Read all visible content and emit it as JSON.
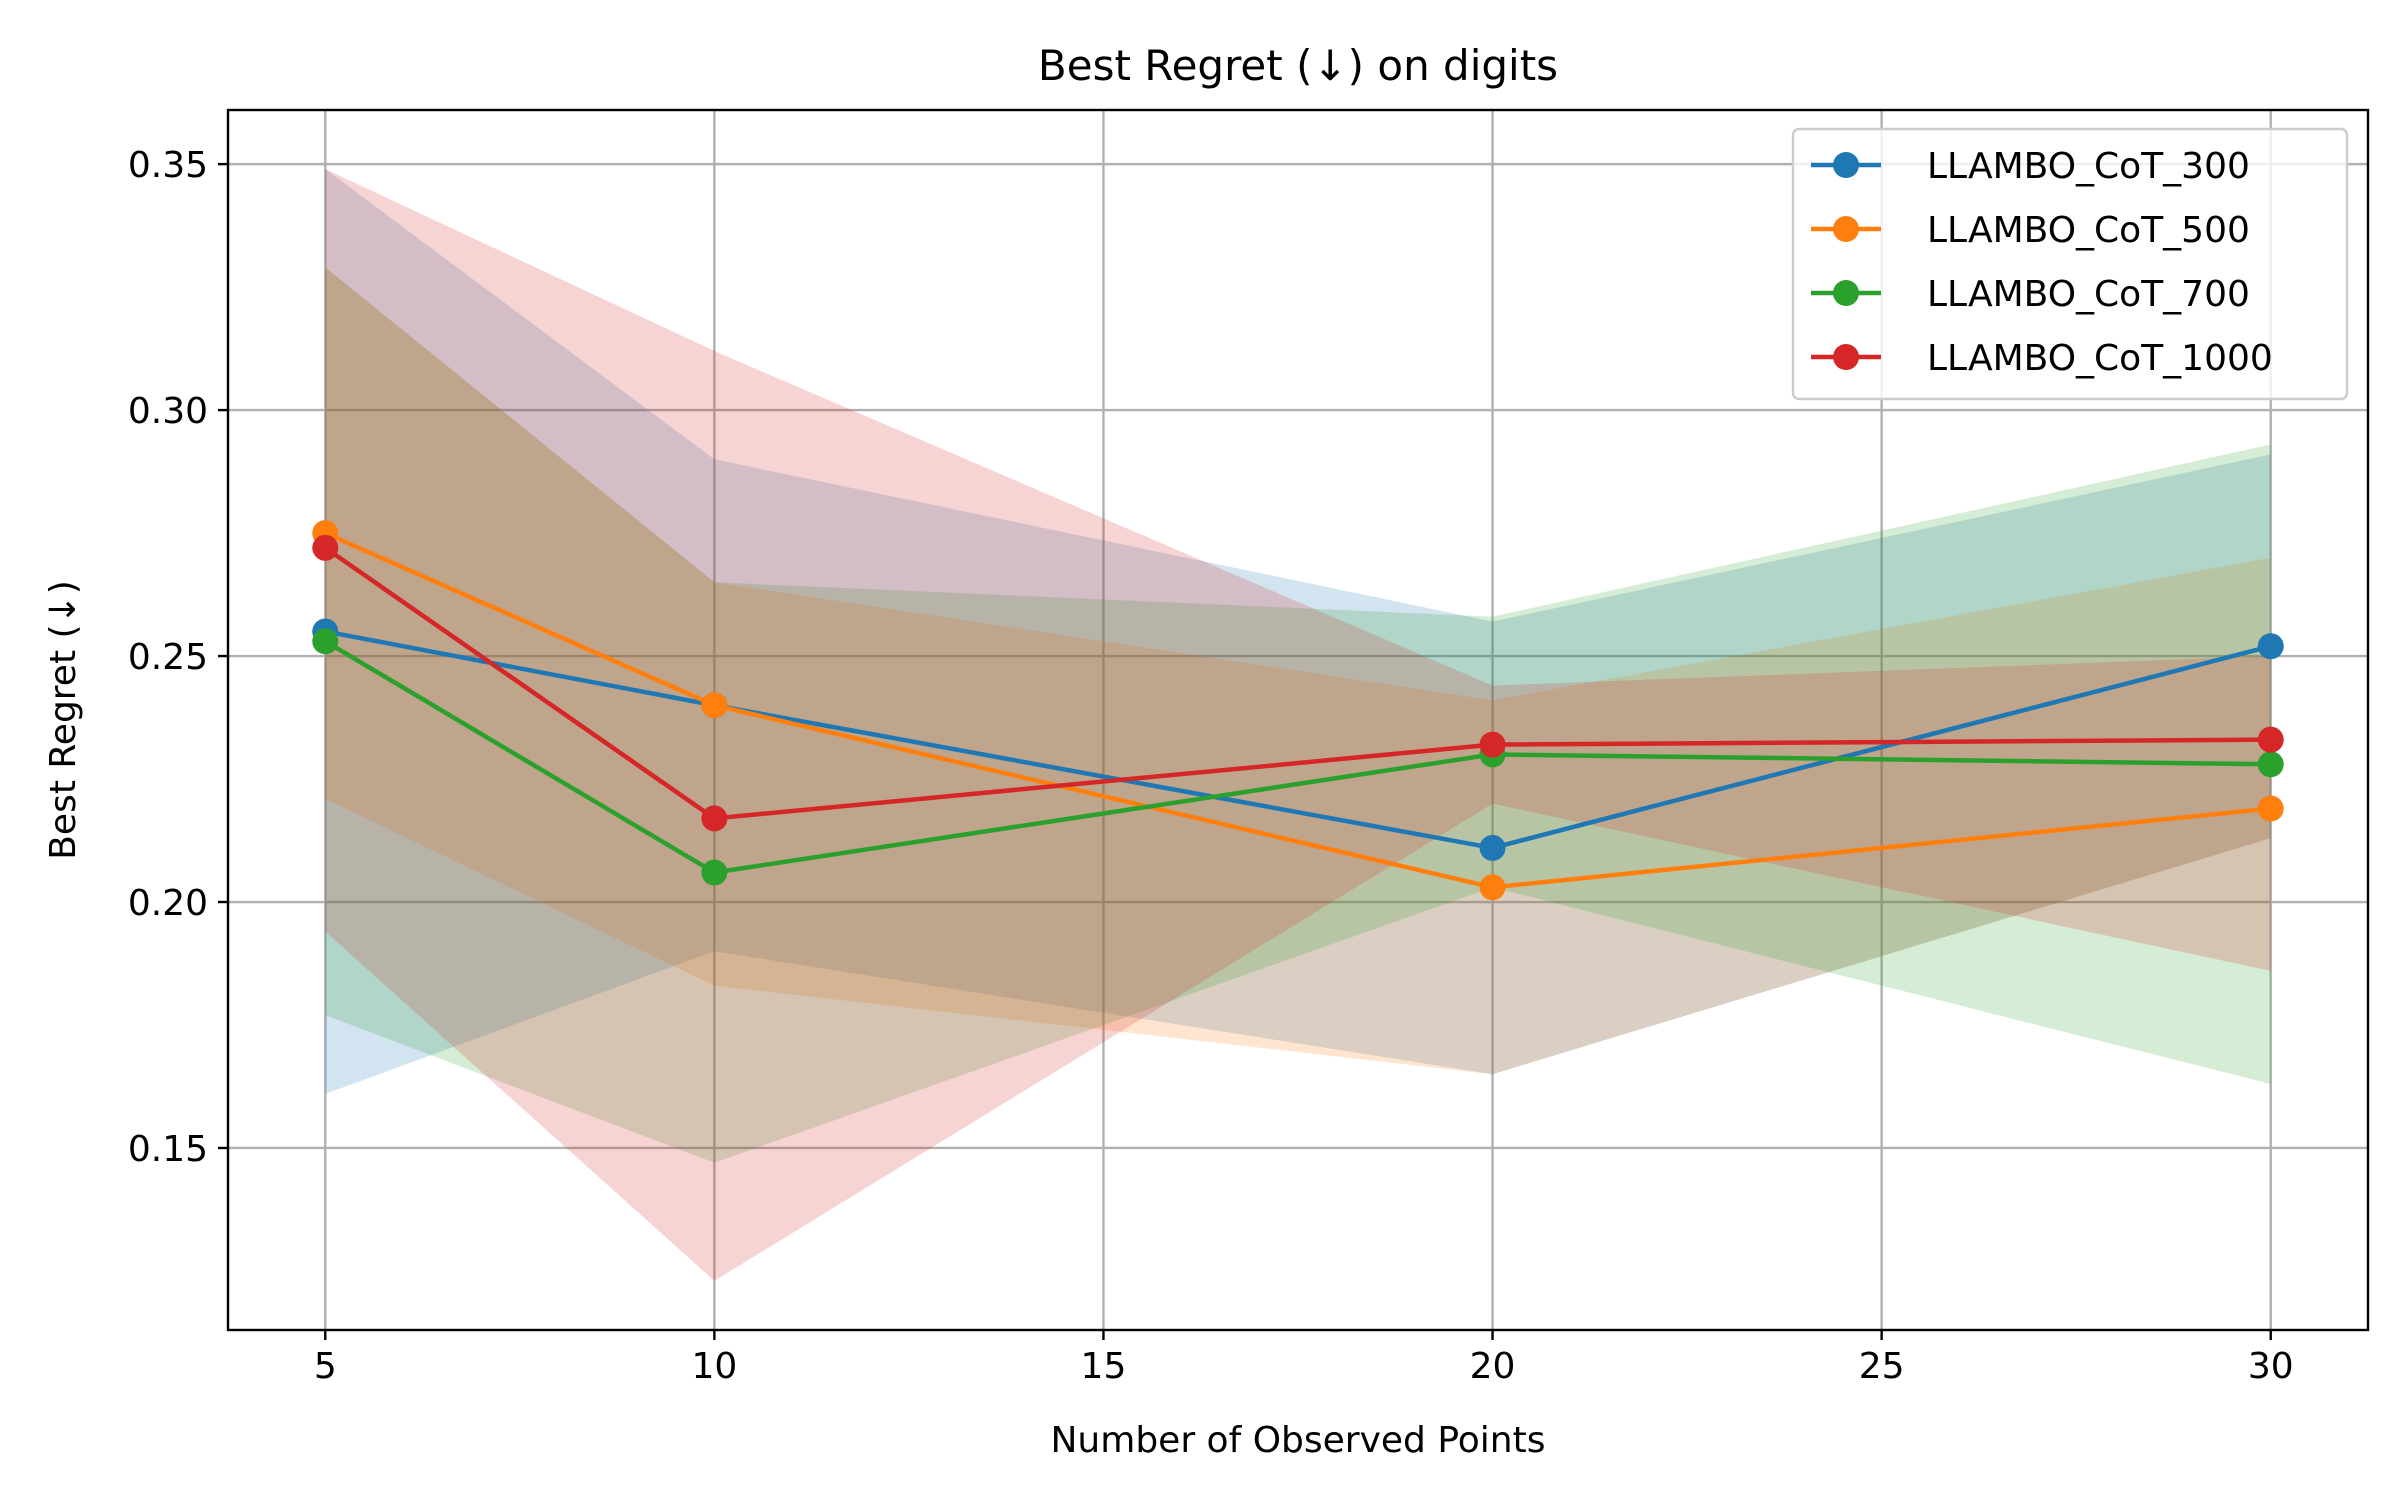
{
  "chart_data": {
    "type": "line",
    "title": "Best Regret (↓) on digits",
    "xlabel": "Number of Observed Points",
    "ylabel": "Best Regret (↓)",
    "x": [
      5,
      10,
      20,
      30
    ],
    "xlim": [
      3.75,
      31.25
    ],
    "ylim": [
      0.113,
      0.361
    ],
    "xticks": [
      5,
      10,
      15,
      20,
      25,
      30
    ],
    "yticks": [
      0.15,
      0.2,
      0.25,
      0.3,
      0.35
    ],
    "grid": true,
    "legend": "top-right",
    "series": [
      {
        "name": "LLAMBO_CoT_300",
        "color": "#1f77b4",
        "values": [
          0.255,
          0.24,
          0.211,
          0.252
        ],
        "lower": [
          0.161,
          0.19,
          0.165,
          0.213
        ],
        "upper": [
          0.349,
          0.29,
          0.257,
          0.291
        ]
      },
      {
        "name": "LLAMBO_CoT_500",
        "color": "#ff7f0e",
        "values": [
          0.275,
          0.24,
          0.203,
          0.219
        ],
        "lower": [
          0.221,
          0.183,
          0.165,
          0.213
        ],
        "upper": [
          0.329,
          0.265,
          0.241,
          0.27
        ]
      },
      {
        "name": "LLAMBO_CoT_700",
        "color": "#2ca02c",
        "values": [
          0.253,
          0.206,
          0.23,
          0.228
        ],
        "lower": [
          0.177,
          0.147,
          0.203,
          0.163
        ],
        "upper": [
          0.329,
          0.265,
          0.258,
          0.293
        ]
      },
      {
        "name": "LLAMBO_CoT_1000",
        "color": "#d62728",
        "values": [
          0.272,
          0.217,
          0.232,
          0.233
        ],
        "lower": [
          0.194,
          0.123,
          0.22,
          0.186
        ],
        "upper": [
          0.349,
          0.312,
          0.244,
          0.25
        ]
      }
    ]
  }
}
